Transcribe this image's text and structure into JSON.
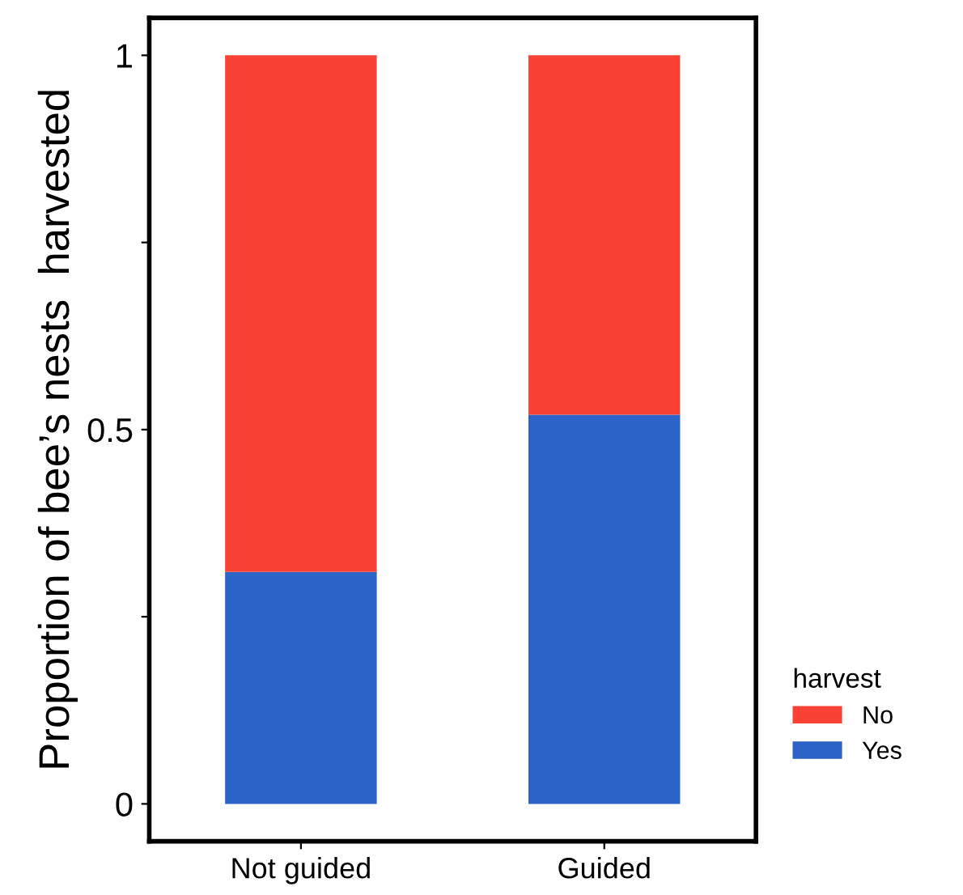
{
  "chart_data": {
    "type": "bar",
    "stacked": true,
    "ylabel": "Proportion of bee’s nests  harvested",
    "legend_title": "harvest",
    "legend": "right",
    "grid": false,
    "categories": [
      "Not guided",
      "Guided"
    ],
    "series": [
      {
        "name": "Yes",
        "color": "#2b63c9",
        "values": [
          0.31,
          0.52
        ]
      },
      {
        "name": "No",
        "color": "#f94233",
        "values": [
          0.69,
          0.48
        ]
      }
    ],
    "ylim": [
      -0.05,
      1.05
    ],
    "yticks": [
      0,
      {
        "value": 0.25,
        "label": null
      },
      {
        "value": 0.5,
        "label": "0.5"
      },
      {
        "value": 0.75,
        "label": null
      },
      1
    ]
  }
}
